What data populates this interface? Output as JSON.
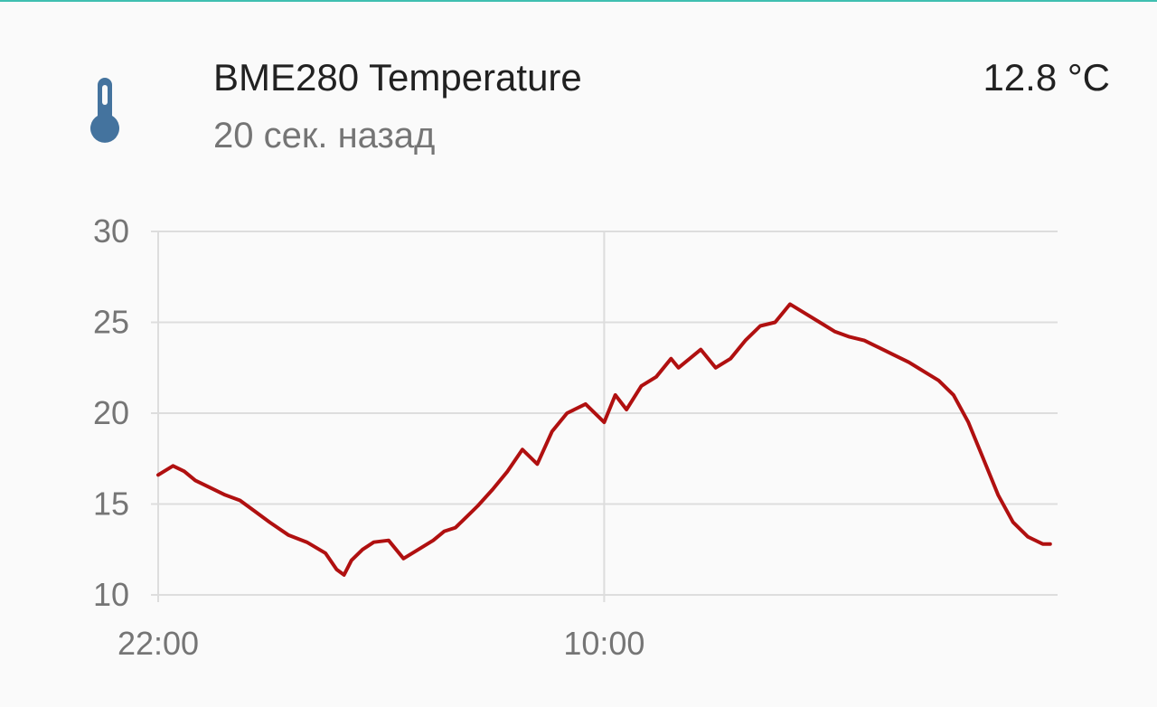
{
  "header": {
    "title": "BME280 Temperature",
    "subtitle": "20 сек. назад",
    "value": "12.8 °C",
    "icon": "thermometer-icon",
    "icon_color": "#44739e"
  },
  "chart_data": {
    "type": "line",
    "title": "",
    "xlabel": "",
    "ylabel": "",
    "ylim": [
      10,
      30
    ],
    "y_ticks": [
      "10",
      "15",
      "20",
      "25",
      "30"
    ],
    "x_ticks": [
      {
        "label": "10:00",
        "hour": 10
      },
      {
        "label": "22:00",
        "hour": 22
      }
    ],
    "xlim_hours": [
      22,
      46.2
    ],
    "grid": true,
    "line_color": "#b01010",
    "series": [
      {
        "x": [
          22.0,
          22.4,
          22.7,
          23.0,
          23.4,
          23.8,
          24.2,
          24.6,
          25.0,
          25.5,
          26.0,
          26.5,
          26.8,
          27.0,
          27.2,
          27.5,
          27.8,
          28.2,
          28.6,
          29.0,
          29.4,
          29.7,
          30.0,
          30.3,
          30.6,
          31.0,
          31.4,
          31.8,
          32.2,
          32.6,
          33.0,
          33.5,
          34.0,
          34.3,
          34.6,
          35.0,
          35.4,
          35.8,
          36.0,
          36.3,
          36.6,
          37.0,
          37.4,
          37.8,
          38.2,
          38.6,
          39.0,
          39.4,
          39.8,
          40.2,
          40.6,
          41.0,
          41.4,
          41.8,
          42.2,
          42.6,
          43.0,
          43.4,
          43.8,
          44.2,
          44.6,
          45.0,
          45.4,
          45.8,
          46.0
        ],
        "y": [
          16.6,
          17.1,
          16.8,
          16.3,
          15.9,
          15.5,
          15.2,
          14.6,
          14.0,
          13.3,
          12.9,
          12.3,
          11.4,
          11.1,
          11.9,
          12.5,
          12.9,
          13.0,
          12.0,
          12.5,
          13.0,
          13.5,
          13.7,
          14.3,
          14.9,
          15.8,
          16.8,
          18.0,
          17.2,
          19.0,
          20.0,
          20.5,
          19.5,
          21.0,
          20.2,
          21.5,
          22.0,
          23.0,
          22.5,
          23.0,
          23.5,
          22.5,
          23.0,
          24.0,
          24.8,
          25.0,
          26.0,
          25.5,
          25.0,
          24.5,
          24.2,
          24.0,
          23.6,
          23.2,
          22.8,
          22.3,
          21.8,
          21.0,
          19.5,
          17.5,
          15.5,
          14.0,
          13.2,
          12.8,
          12.8
        ]
      }
    ]
  }
}
